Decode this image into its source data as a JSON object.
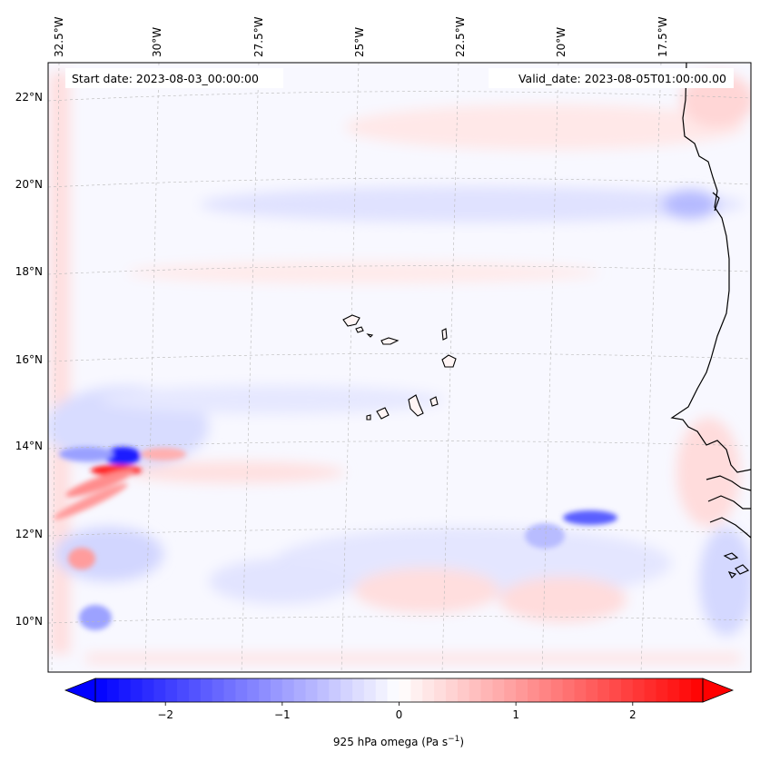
{
  "map": {
    "start_date_label": "Start date: 2023-08-03_00:00:00",
    "valid_date_label": "Valid_date: 2023-08-05T01:00:00.00",
    "lon_labels": [
      "32.5°W",
      "30°W",
      "27.5°W",
      "25°W",
      "22.5°W",
      "20°W",
      "17.5°W"
    ],
    "lat_labels": [
      "22°N",
      "20°N",
      "18°N",
      "16°N",
      "14°N",
      "12°N",
      "10°N"
    ],
    "gridlines": true
  },
  "colorbar": {
    "ticks": [
      "−2",
      "−1",
      "0",
      "1",
      "2"
    ],
    "tick_values": [
      -2,
      -1,
      0,
      1,
      2
    ],
    "range": [
      -2.6,
      2.6
    ],
    "label": "925 hPa omega (Pa s",
    "label_sup": "−1",
    "label_end": ")",
    "cmap": "bwr",
    "colors": {
      "neg": "#0000ff",
      "mid": "#ffffff",
      "pos": "#ff0000"
    }
  }
}
